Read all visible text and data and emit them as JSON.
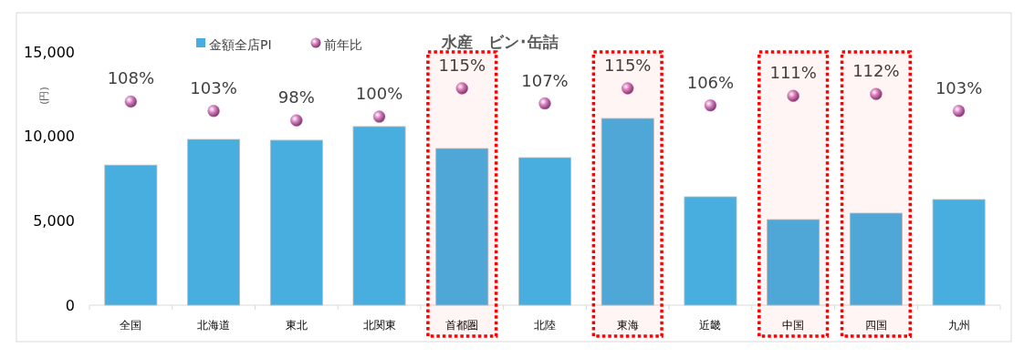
{
  "chart_data": {
    "type": "bar",
    "title": "水産　ビン･缶詰",
    "ylabel": "(円)",
    "categories": [
      "全国",
      "北海道",
      "東北",
      "北関東",
      "首都圏",
      "北陸",
      "東海",
      "近畿",
      "中国",
      "四国",
      "九州"
    ],
    "series": [
      {
        "name": "金額全店PI",
        "color": "#47aedf",
        "values": [
          8300,
          9820,
          9770,
          10580,
          9280,
          8740,
          11060,
          6420,
          5070,
          5450,
          6260
        ]
      },
      {
        "name": "前年比",
        "type": "scatter",
        "axis": "y2",
        "color": "#d77fc0",
        "marker": "circle",
        "values": [
          108,
          103,
          98,
          100,
          115,
          107,
          115,
          106,
          111,
          112,
          103
        ],
        "value_labels": [
          "108%",
          "103%",
          "98%",
          "100%",
          "115%",
          "107%",
          "115%",
          "106%",
          "111%",
          "112%",
          "103%"
        ]
      }
    ],
    "ylim": [
      0,
      15000
    ],
    "yticks": [
      {
        "value": 0,
        "label": "0"
      },
      {
        "value": 5000,
        "label": "5,000"
      },
      {
        "value": 10000,
        "label": "10,000"
      },
      {
        "value": 15000,
        "label": "15,000"
      }
    ],
    "legend": "top",
    "grid": false,
    "bands": [
      {
        "axis": "x",
        "from": "首都圏",
        "to": "首都圏",
        "color": "#ff0000"
      },
      {
        "axis": "x",
        "from": "東海",
        "to": "東海",
        "color": "#ff0000"
      },
      {
        "axis": "x",
        "from": "中国",
        "to": "中国",
        "color": "#ff0000"
      },
      {
        "axis": "x",
        "from": "四国",
        "to": "四国",
        "color": "#ff0000"
      }
    ]
  }
}
